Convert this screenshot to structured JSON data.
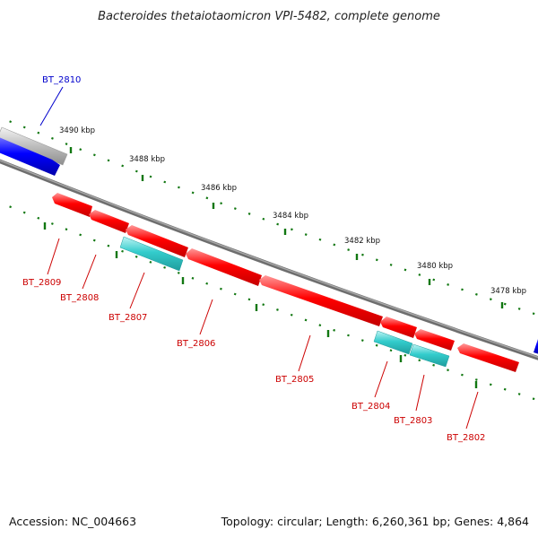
{
  "title": "Bacteroides thetaiotaomicron VPI-5482, complete genome",
  "footer": {
    "accession": "Accession: NC_004663",
    "summary": "Topology: circular; Length: 6,260,361 bp; Genes: 4,864"
  },
  "scale_labels": [
    "3490 kbp",
    "3488 kbp",
    "3486 kbp",
    "3484 kbp",
    "3482 kbp",
    "3480 kbp",
    "3478 kbp"
  ],
  "colors": {
    "backbone": "#808080",
    "reverse_gene": "#ff0000",
    "forward_gene": "#0000ff",
    "cyan_feature": "#33cccc",
    "grey_feature": "#bbbbbb",
    "tick": "#117711",
    "forward_label": "#0000cc",
    "reverse_label": "#cc0000"
  },
  "gene_labels": {
    "bt2810": "BT_2810",
    "bt2809": "BT_2809",
    "bt2808": "BT_2808",
    "bt2807": "BT_2807",
    "bt2806": "BT_2806",
    "bt2805": "BT_2805",
    "bt2804": "BT_2804",
    "bt2803": "BT_2803",
    "bt2802": "BT_2802"
  }
}
